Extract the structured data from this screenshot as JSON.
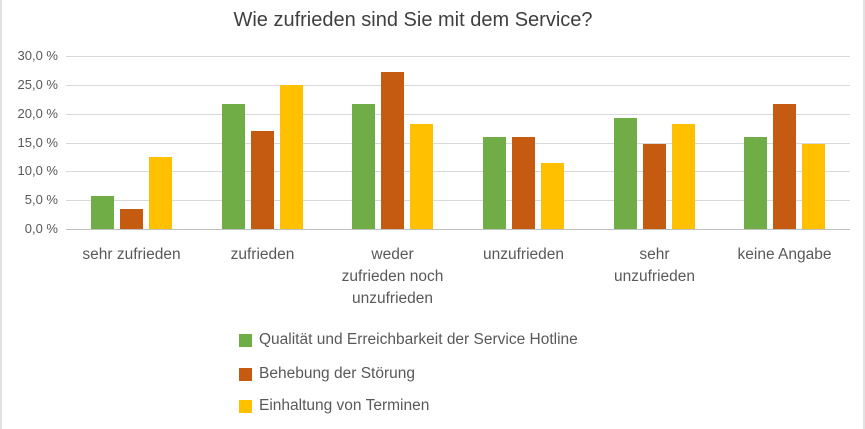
{
  "chart_data": {
    "type": "bar",
    "title": "Wie zufrieden sind Sie mit dem Service?",
    "categories": [
      "sehr zufrieden",
      "zufrieden",
      "weder zufrieden noch unzufrieden",
      "unzufrieden",
      "sehr unzufrieden",
      "keine Angabe"
    ],
    "category_lines": [
      [
        "sehr zufrieden"
      ],
      [
        "zufrieden"
      ],
      [
        "weder",
        "zufrieden noch",
        "unzufrieden"
      ],
      [
        "unzufrieden"
      ],
      [
        "sehr",
        "unzufrieden"
      ],
      [
        "keine Angabe"
      ]
    ],
    "series": [
      {
        "name": "Qualität und Erreichbarkeit der Service Hotline",
        "color": "#70AD47",
        "values": [
          5.7,
          21.6,
          21.6,
          15.9,
          19.3,
          15.9
        ]
      },
      {
        "name": "Behebung der Störung",
        "color": "#C55A11",
        "values": [
          3.4,
          17.0,
          27.3,
          15.9,
          14.8,
          21.6
        ]
      },
      {
        "name": "Einhaltung von Terminen",
        "color": "#FFC000",
        "values": [
          12.5,
          25.0,
          18.2,
          11.4,
          18.2,
          14.8
        ]
      }
    ],
    "ylabel": "",
    "xlabel": "",
    "ylim": [
      0,
      30
    ],
    "ytick_step": 5,
    "ytick_labels": [
      "0,0 %",
      "5,0 %",
      "10,0 %",
      "15,0 %",
      "20,0 %",
      "25,0 %",
      "30,0 %"
    ],
    "grid": true,
    "legend_position": "bottom-left"
  },
  "colors": {
    "background": "#FFFFFF",
    "gridline": "#D9D9D9",
    "axis_line": "#BFBFBF",
    "text_muted": "#595959",
    "title_text": "#3F3F3F",
    "frame_border": "#E2E2E2"
  }
}
